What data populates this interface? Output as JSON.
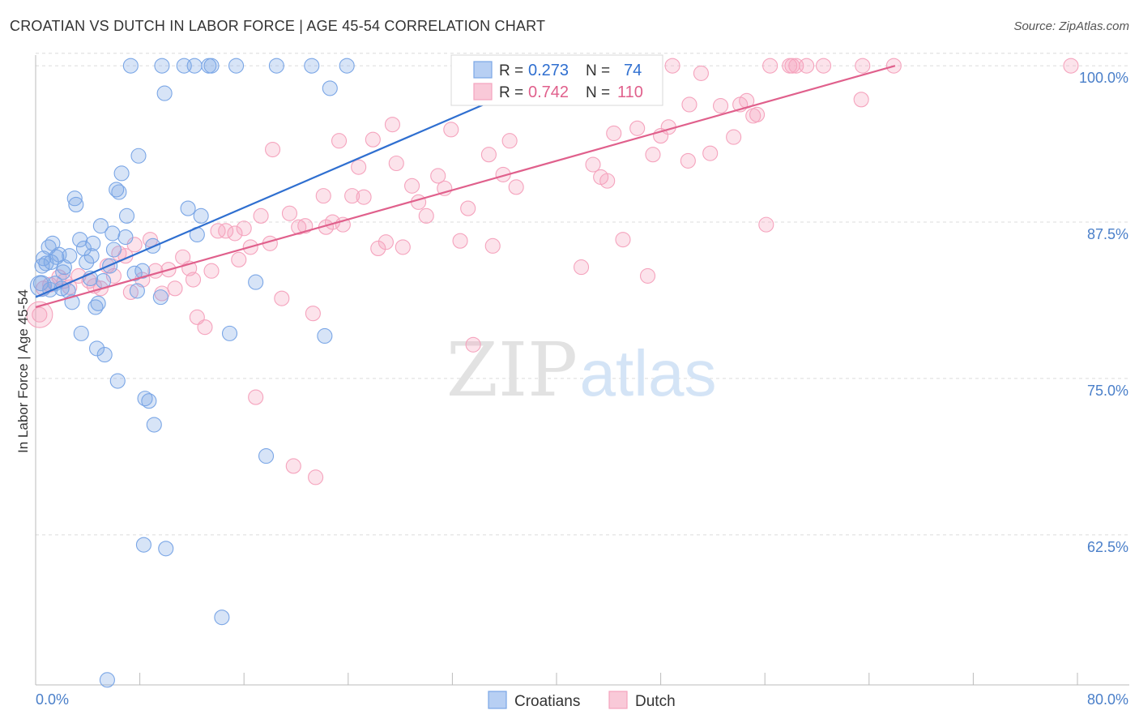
{
  "title": "CROATIAN VS DUTCH IN LABOR FORCE | AGE 45-54 CORRELATION CHART",
  "source": "Source: ZipAtlas.com",
  "watermark": {
    "zip": "ZIP",
    "atlas": "atlas"
  },
  "chart_data": {
    "type": "scatter",
    "xlabel": "",
    "ylabel": "In Labor Force | Age 45-54",
    "xlim": [
      0,
      80
    ],
    "ylim": [
      50.5,
      101.5
    ],
    "x_tick_labels": [
      "0.0%",
      "80.0%"
    ],
    "y_ticks": [
      62.5,
      75.0,
      87.5,
      100.0
    ],
    "y_tick_labels": [
      "62.5%",
      "75.0%",
      "87.5%",
      "100.0%"
    ],
    "grid": true,
    "legend": {
      "position": "top-center",
      "entries": [
        {
          "series": "Croatians",
          "r_label": "R = ",
          "r_value": "0.273",
          "n_label": "N = ",
          "n_value": "74"
        },
        {
          "series": "Dutch",
          "r_label": "R = ",
          "r_value": "0.742",
          "n_label": "N = ",
          "n_value": "110"
        }
      ]
    },
    "series": [
      {
        "name": "Croatians",
        "color": "#7aa6e6",
        "line_color": "#2f6fd0",
        "trend": [
          [
            0.0,
            81.5
          ],
          [
            40.0,
            99.4
          ]
        ],
        "points": [
          [
            0.4,
            82.6
          ],
          [
            0.5,
            84.0
          ],
          [
            0.6,
            84.6
          ],
          [
            0.8,
            84.2
          ],
          [
            1.0,
            85.5
          ],
          [
            1.1,
            82.1
          ],
          [
            1.2,
            84.3
          ],
          [
            1.3,
            85.8
          ],
          [
            1.5,
            82.6
          ],
          [
            1.6,
            84.7
          ],
          [
            1.8,
            84.9
          ],
          [
            2.0,
            82.2
          ],
          [
            2.1,
            83.5
          ],
          [
            2.2,
            83.9
          ],
          [
            2.5,
            82.0
          ],
          [
            2.6,
            84.8
          ],
          [
            2.8,
            81.1
          ],
          [
            3.0,
            89.4
          ],
          [
            3.1,
            88.9
          ],
          [
            3.4,
            86.1
          ],
          [
            3.5,
            78.6
          ],
          [
            3.7,
            85.4
          ],
          [
            3.9,
            84.3
          ],
          [
            4.2,
            83.0
          ],
          [
            4.3,
            84.8
          ],
          [
            4.4,
            85.8
          ],
          [
            4.6,
            80.7
          ],
          [
            4.7,
            77.4
          ],
          [
            4.8,
            81.0
          ],
          [
            5.0,
            87.2
          ],
          [
            5.2,
            82.8
          ],
          [
            5.3,
            76.9
          ],
          [
            5.7,
            84.0
          ],
          [
            5.9,
            86.6
          ],
          [
            6.0,
            85.3
          ],
          [
            6.2,
            90.1
          ],
          [
            6.3,
            74.8
          ],
          [
            6.4,
            89.9
          ],
          [
            6.6,
            91.4
          ],
          [
            6.9,
            86.3
          ],
          [
            7.0,
            88.0
          ],
          [
            7.3,
            100.0
          ],
          [
            7.6,
            83.4
          ],
          [
            7.8,
            82.0
          ],
          [
            7.9,
            92.8
          ],
          [
            8.2,
            83.6
          ],
          [
            8.3,
            61.7
          ],
          [
            8.4,
            73.4
          ],
          [
            8.7,
            73.2
          ],
          [
            9.0,
            85.6
          ],
          [
            9.1,
            71.3
          ],
          [
            9.6,
            81.5
          ],
          [
            9.7,
            100.0
          ],
          [
            9.9,
            97.8
          ],
          [
            10.0,
            61.4
          ],
          [
            11.4,
            100.0
          ],
          [
            11.7,
            88.6
          ],
          [
            12.2,
            100.0
          ],
          [
            12.4,
            86.5
          ],
          [
            12.7,
            88.0
          ],
          [
            13.3,
            100.0
          ],
          [
            13.5,
            100.0
          ],
          [
            14.3,
            55.9
          ],
          [
            14.9,
            78.6
          ],
          [
            15.4,
            100.0
          ],
          [
            16.9,
            82.7
          ],
          [
            17.7,
            68.8
          ],
          [
            18.5,
            100.0
          ],
          [
            21.2,
            100.0
          ],
          [
            22.2,
            78.4
          ],
          [
            22.6,
            98.2
          ],
          [
            23.9,
            100.0
          ],
          [
            34.1,
            100.0
          ],
          [
            5.5,
            50.9
          ]
        ]
      },
      {
        "name": "Dutch",
        "color": "#f5a3bd",
        "line_color": "#e0608c",
        "trend": [
          [
            0.0,
            80.7
          ],
          [
            66.0,
            100.0
          ]
        ],
        "points": [
          [
            0.3,
            80.1
          ],
          [
            0.6,
            82.2
          ],
          [
            1.1,
            82.5
          ],
          [
            1.8,
            83.1
          ],
          [
            2.2,
            82.8
          ],
          [
            2.6,
            82.3
          ],
          [
            3.3,
            83.2
          ],
          [
            4.1,
            82.8
          ],
          [
            4.5,
            82.4
          ],
          [
            5.0,
            82.2
          ],
          [
            5.5,
            84.0
          ],
          [
            6.0,
            83.2
          ],
          [
            6.4,
            85.0
          ],
          [
            6.9,
            84.8
          ],
          [
            7.3,
            81.9
          ],
          [
            7.6,
            85.7
          ],
          [
            8.2,
            82.9
          ],
          [
            8.8,
            86.1
          ],
          [
            9.2,
            83.6
          ],
          [
            9.7,
            81.8
          ],
          [
            10.2,
            83.7
          ],
          [
            10.7,
            82.2
          ],
          [
            11.3,
            84.7
          ],
          [
            11.8,
            83.8
          ],
          [
            12.1,
            82.9
          ],
          [
            12.4,
            79.9
          ],
          [
            13.0,
            79.1
          ],
          [
            13.5,
            83.6
          ],
          [
            14.0,
            86.8
          ],
          [
            14.6,
            86.8
          ],
          [
            15.3,
            86.6
          ],
          [
            15.6,
            84.5
          ],
          [
            16.0,
            87.0
          ],
          [
            16.5,
            85.5
          ],
          [
            16.9,
            73.5
          ],
          [
            17.3,
            88.0
          ],
          [
            18.0,
            85.8
          ],
          [
            18.2,
            93.3
          ],
          [
            18.9,
            81.4
          ],
          [
            19.5,
            88.2
          ],
          [
            19.8,
            68.0
          ],
          [
            20.2,
            87.1
          ],
          [
            20.7,
            87.2
          ],
          [
            21.3,
            80.2
          ],
          [
            21.5,
            67.1
          ],
          [
            22.1,
            89.6
          ],
          [
            22.3,
            87.1
          ],
          [
            22.8,
            87.5
          ],
          [
            23.3,
            94.0
          ],
          [
            23.6,
            87.3
          ],
          [
            24.3,
            89.6
          ],
          [
            24.8,
            91.9
          ],
          [
            25.2,
            89.5
          ],
          [
            25.9,
            94.1
          ],
          [
            26.3,
            85.4
          ],
          [
            26.9,
            85.9
          ],
          [
            27.4,
            95.3
          ],
          [
            27.7,
            92.2
          ],
          [
            28.2,
            85.5
          ],
          [
            28.9,
            90.4
          ],
          [
            29.4,
            89.1
          ],
          [
            30.0,
            88.0
          ],
          [
            30.9,
            91.2
          ],
          [
            31.4,
            90.2
          ],
          [
            31.9,
            94.9
          ],
          [
            32.6,
            86.0
          ],
          [
            33.2,
            88.6
          ],
          [
            33.6,
            77.7
          ],
          [
            34.8,
            92.9
          ],
          [
            35.1,
            85.6
          ],
          [
            35.9,
            91.3
          ],
          [
            36.4,
            94.0
          ],
          [
            36.9,
            90.3
          ],
          [
            38.4,
            100.0
          ],
          [
            39.8,
            100.0
          ],
          [
            40.1,
            100.0
          ],
          [
            41.9,
            83.9
          ],
          [
            42.0,
            100.0
          ],
          [
            42.8,
            92.1
          ],
          [
            43.4,
            91.1
          ],
          [
            43.9,
            90.8
          ],
          [
            44.4,
            94.6
          ],
          [
            45.1,
            86.1
          ],
          [
            45.6,
            100.0
          ],
          [
            46.2,
            95.0
          ],
          [
            47.0,
            83.2
          ],
          [
            47.4,
            92.9
          ],
          [
            48.0,
            94.4
          ],
          [
            48.6,
            95.1
          ],
          [
            48.9,
            100.0
          ],
          [
            50.1,
            92.4
          ],
          [
            50.2,
            96.9
          ],
          [
            51.1,
            99.4
          ],
          [
            51.8,
            93.0
          ],
          [
            52.6,
            96.8
          ],
          [
            53.6,
            94.3
          ],
          [
            54.1,
            96.9
          ],
          [
            54.6,
            97.2
          ],
          [
            55.1,
            96.0
          ],
          [
            55.4,
            96.1
          ],
          [
            56.1,
            87.3
          ],
          [
            56.4,
            100.0
          ],
          [
            57.9,
            100.0
          ],
          [
            58.1,
            100.0
          ],
          [
            58.4,
            100.0
          ],
          [
            59.2,
            100.0
          ],
          [
            60.5,
            100.0
          ],
          [
            63.4,
            97.3
          ],
          [
            63.5,
            100.0
          ],
          [
            65.9,
            100.0
          ],
          [
            79.5,
            100.0
          ]
        ]
      }
    ]
  },
  "bottom_legend": [
    {
      "label": "Croatians"
    },
    {
      "label": "Dutch"
    }
  ]
}
